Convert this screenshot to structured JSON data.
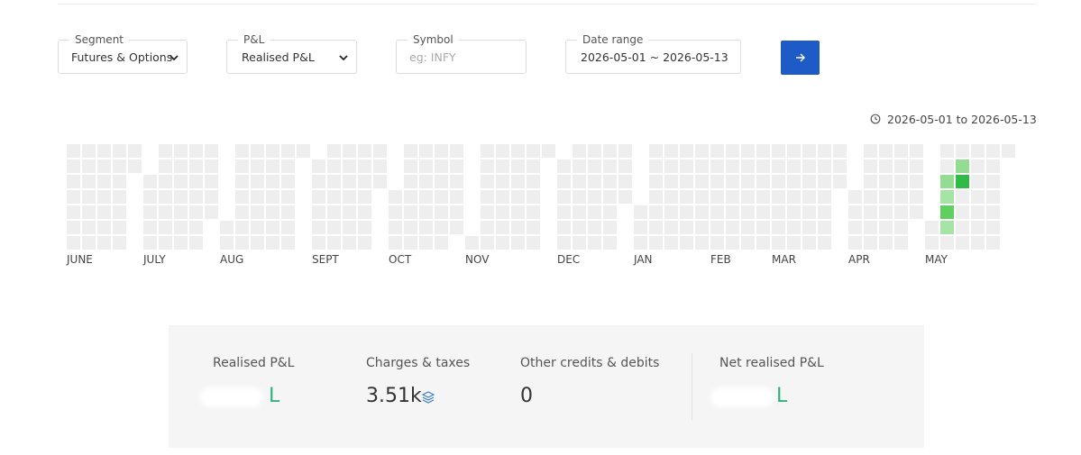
{
  "filters": {
    "segment": {
      "label": "Segment",
      "value": "Futures & Options"
    },
    "pnl": {
      "label": "P&L",
      "value": "Realised P&L"
    },
    "symbol": {
      "label": "Symbol",
      "placeholder": "eg: INFY"
    },
    "date_range": {
      "label": "Date range",
      "value": "2026-05-01 ~ 2026-05-13"
    }
  },
  "heatmap": {
    "period": "2026-05-01 to 2026-05-13",
    "months": [
      "JUNE",
      "JULY",
      "AUG",
      "SEPT",
      "OCT",
      "NOV",
      "DEC",
      "JAN",
      "FEB",
      "MAR",
      "APR",
      "MAY"
    ]
  },
  "summary": [
    {
      "label": "Realised P&L",
      "value": "L"
    },
    {
      "label": "Charges & taxes",
      "value": "3.51k"
    },
    {
      "label": "Other credits & debits",
      "value": "0"
    },
    {
      "label": "Net realised P&L",
      "value": "L"
    }
  ]
}
